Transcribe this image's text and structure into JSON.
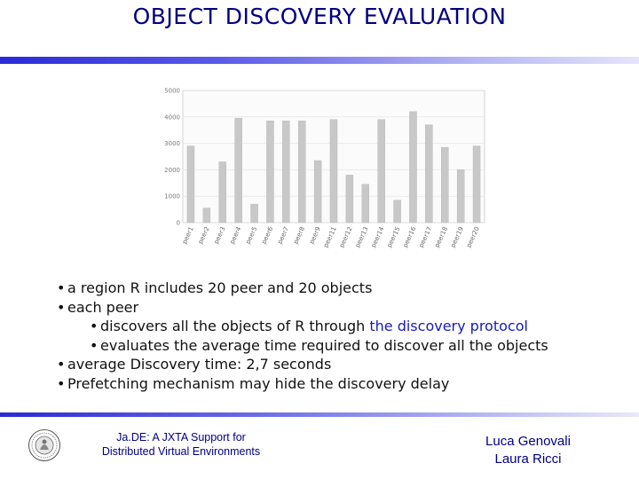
{
  "slide": {
    "title": "OBJECT DISCOVERY EVALUATION"
  },
  "chart_data": {
    "type": "bar",
    "categories": [
      "peer1",
      "peer2",
      "peer3",
      "peer4",
      "peer5",
      "peer6",
      "peer7",
      "peer8",
      "peer9",
      "peer11",
      "peer12",
      "peer13",
      "peer14",
      "peer15",
      "peer16",
      "peer17",
      "peer18",
      "peer19",
      "peer20"
    ],
    "values": [
      2900,
      550,
      2300,
      3950,
      700,
      3850,
      3850,
      3850,
      2350,
      3900,
      1800,
      1450,
      3900,
      850,
      4200,
      3700,
      2850,
      2000,
      2900
    ],
    "yticks": [
      "0",
      "1000",
      "2000",
      "3000",
      "4000",
      "5000"
    ],
    "ylim": [
      0,
      5000
    ],
    "bar_color": "#c8c8c8",
    "title": "",
    "xlabel": "",
    "ylabel": ""
  },
  "bullets": {
    "b1": "a region R includes 20 peer and 20 objects",
    "b2": "each peer",
    "b2a_pre": "discovers all the objects of  R through ",
    "b2a_link": "the  discovery protocol",
    "b2b": "evaluates the average time required to discover all the objects",
    "b3": "average Discovery time: 2,7 seconds",
    "b4": "Prefetching mechanism may  hide the discovery delay"
  },
  "footer": {
    "line1": "Ja.DE: A JXTA Support for",
    "line2": "Distributed Virtual Environments",
    "author1": "Luca Genovali",
    "author2": "Laura Ricci"
  },
  "colors": {
    "title": "#000080",
    "rule": "#2a2ad8",
    "link": "#1a1ab8"
  }
}
